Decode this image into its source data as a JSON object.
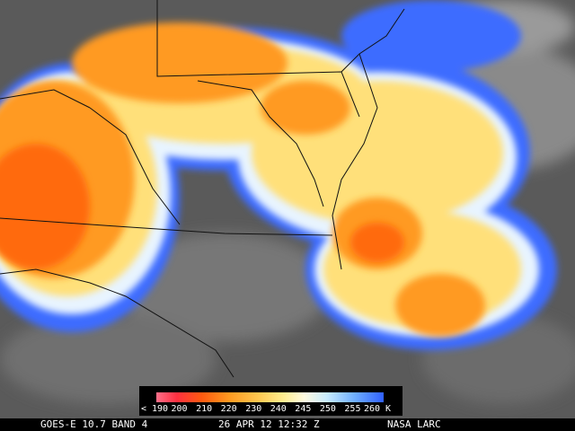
{
  "legend": {
    "labels": [
      "< 190",
      "200",
      "210",
      "220",
      "230",
      "240",
      "245",
      "250",
      "255",
      "260 K"
    ]
  },
  "footer": {
    "satellite": "GOES-E 10.7 BAND 4",
    "timestamp": "26 APR 12 12:32 Z",
    "source": "NASA LARC"
  }
}
